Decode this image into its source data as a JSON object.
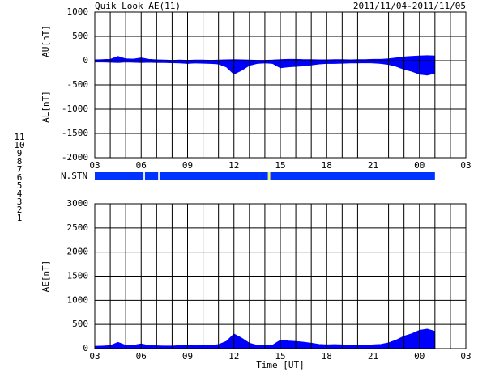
{
  "title": "Quik Look AE(11)",
  "date_range": "2011/11/04-2011/11/05",
  "chart_data": [
    {
      "type": "area",
      "ylabels": [
        "AU[nT]",
        "AL[nT]"
      ],
      "x": [
        3,
        3.5,
        4,
        4.5,
        5,
        5.5,
        6,
        6.5,
        7,
        7.5,
        8,
        8.5,
        9,
        9.5,
        10,
        10.5,
        11,
        11.5,
        12,
        12.5,
        13,
        13.5,
        14,
        14.5,
        15,
        15.5,
        16,
        16.5,
        17,
        17.5,
        18,
        18.5,
        19,
        19.5,
        20,
        20.5,
        21,
        21.5,
        22,
        22.5,
        23,
        23.5,
        24,
        24.5,
        25
      ],
      "series": [
        {
          "name": "AU",
          "color": "#0000ff",
          "values": [
            20,
            25,
            30,
            90,
            40,
            35,
            60,
            30,
            20,
            15,
            10,
            15,
            10,
            15,
            15,
            10,
            15,
            20,
            25,
            20,
            15,
            10,
            10,
            15,
            25,
            30,
            30,
            25,
            25,
            20,
            20,
            25,
            25,
            20,
            25,
            25,
            30,
            30,
            40,
            60,
            80,
            90,
            100,
            105,
            100
          ]
        },
        {
          "name": "AL",
          "color": "#0000ff",
          "values": [
            -30,
            -30,
            -35,
            -40,
            -30,
            -35,
            -40,
            -35,
            -40,
            -40,
            -45,
            -50,
            -60,
            -50,
            -55,
            -60,
            -70,
            -130,
            -280,
            -200,
            -100,
            -60,
            -50,
            -60,
            -150,
            -130,
            -120,
            -110,
            -90,
            -70,
            -60,
            -60,
            -55,
            -50,
            -50,
            -45,
            -50,
            -60,
            -80,
            -120,
            -180,
            -220,
            -280,
            -300,
            -260
          ]
        }
      ],
      "xlim": [
        3,
        27
      ],
      "xticks": [
        {
          "value": 3,
          "label": "03"
        },
        {
          "value": 6,
          "label": "06"
        },
        {
          "value": 9,
          "label": "09"
        },
        12,
        15,
        18,
        21,
        {
          "value": 24,
          "label": "00"
        },
        {
          "value": 27,
          "label": "03"
        }
      ],
      "xgrid": [
        4,
        5,
        7,
        8,
        10,
        11,
        13,
        14,
        16,
        17,
        19,
        20,
        22,
        23,
        25,
        26
      ],
      "ylim": [
        -2000,
        1000
      ],
      "yticks": [
        -2000,
        -1500,
        -1000,
        -500,
        0,
        500,
        1000
      ],
      "grid": true
    },
    {
      "type": "timeline",
      "label": "N.STN",
      "xlim": [
        3,
        27
      ],
      "segments": [
        {
          "x0": 3,
          "x1": 6.15,
          "n": 9
        },
        {
          "x0": 6.15,
          "x1": 6.25,
          "n": 5
        },
        {
          "x0": 6.25,
          "x1": 7.1,
          "n": 9
        },
        {
          "x0": 7.1,
          "x1": 7.2,
          "n": 5
        },
        {
          "x0": 7.2,
          "x1": 14.2,
          "n": 9
        },
        {
          "x0": 14.2,
          "x1": 14.35,
          "n": 8
        },
        {
          "x0": 14.35,
          "x1": 25,
          "n": 9
        }
      ],
      "counts": [
        11,
        10,
        9,
        8,
        7,
        6,
        5,
        4,
        3,
        2,
        1
      ],
      "colors": [
        "#00ffff",
        "#ff00ff",
        "#0033ff",
        "#f0f060",
        "#00c000",
        "#ff0000",
        "#e8e8e8",
        "#a0a0a0",
        "#008080",
        "#a000a0",
        "#0000c0"
      ]
    },
    {
      "type": "area",
      "ylabels": [
        "AE[nT]"
      ],
      "xlabel": "Time [UT]",
      "x": [
        3,
        3.5,
        4,
        4.5,
        5,
        5.5,
        6,
        6.5,
        7,
        7.5,
        8,
        8.5,
        9,
        9.5,
        10,
        10.5,
        11,
        11.5,
        12,
        12.5,
        13,
        13.5,
        14,
        14.5,
        15,
        15.5,
        16,
        16.5,
        17,
        17.5,
        18,
        18.5,
        19,
        19.5,
        20,
        20.5,
        21,
        21.5,
        22,
        22.5,
        23,
        23.5,
        24,
        24.5,
        25
      ],
      "series": [
        {
          "name": "AE",
          "color": "#0000ff",
          "values": [
            50,
            55,
            65,
            130,
            70,
            70,
            100,
            65,
            60,
            55,
            55,
            65,
            70,
            65,
            70,
            70,
            85,
            150,
            305,
            220,
            115,
            70,
            60,
            75,
            175,
            160,
            150,
            135,
            115,
            90,
            80,
            85,
            80,
            70,
            75,
            70,
            80,
            90,
            120,
            180,
            260,
            310,
            380,
            405,
            360
          ]
        }
      ],
      "xlim": [
        3,
        27
      ],
      "xticks": [
        {
          "value": 3,
          "label": "03"
        },
        {
          "value": 6,
          "label": "06"
        },
        {
          "value": 9,
          "label": "09"
        },
        12,
        15,
        18,
        21,
        {
          "value": 24,
          "label": "00"
        },
        {
          "value": 27,
          "label": "03"
        }
      ],
      "xgrid": [
        4,
        5,
        7,
        8,
        10,
        11,
        13,
        14,
        16,
        17,
        19,
        20,
        22,
        23,
        25,
        26
      ],
      "ylim": [
        0,
        3000
      ],
      "yticks": [
        0,
        500,
        1000,
        1500,
        2000,
        2500,
        3000
      ],
      "grid": true
    }
  ]
}
